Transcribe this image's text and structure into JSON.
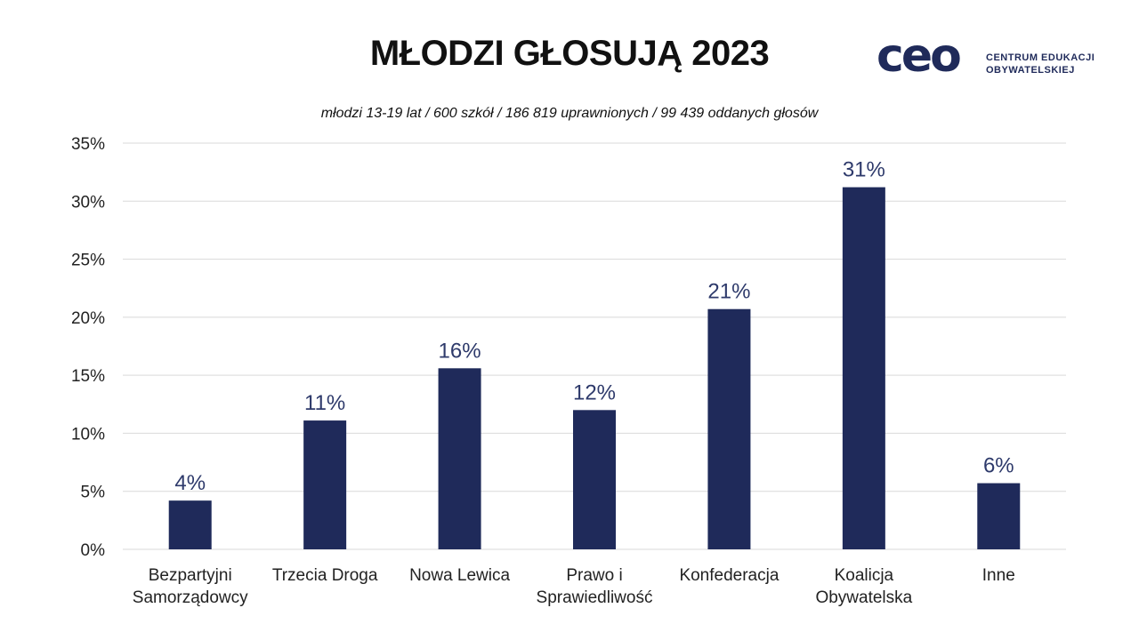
{
  "title": "MŁODZI GŁOSUJĄ 2023",
  "subtitle": "młodzi 13-19 lat / 600 szkół / 186 819 uprawnionych / 99 439 oddanych głosów",
  "logo": {
    "mark": "ceo",
    "line1": "CENTRUM EDUKACJI",
    "line2": "OBYWATELSKIEJ"
  },
  "colors": {
    "bar": "#1f2a5a",
    "label": "#2e3a6b",
    "grid": "#d9d9d9",
    "axis_text": "#222222"
  },
  "chart_data": {
    "type": "bar",
    "title": "",
    "xlabel": "",
    "ylabel": "",
    "categories": [
      [
        "Bezpartyjni",
        "Samorządowcy"
      ],
      [
        "Trzecia Droga"
      ],
      [
        "Nowa Lewica"
      ],
      [
        "Prawo i",
        "Sprawiedliwość"
      ],
      [
        "Konfederacja"
      ],
      [
        "Koalicja",
        "Obywatelska"
      ],
      [
        "Inne"
      ]
    ],
    "values": [
      4.2,
      11.1,
      15.6,
      12.0,
      20.7,
      31.2,
      5.7
    ],
    "data_labels": [
      "4%",
      "11%",
      "16%",
      "12%",
      "21%",
      "31%",
      "6%"
    ],
    "ylim": [
      0,
      35
    ],
    "yticks": [
      0,
      5,
      10,
      15,
      20,
      25,
      30,
      35
    ],
    "ytick_labels": [
      "0%",
      "5%",
      "10%",
      "15%",
      "20%",
      "25%",
      "30%",
      "35%"
    ],
    "grid": true,
    "legend": "none"
  }
}
